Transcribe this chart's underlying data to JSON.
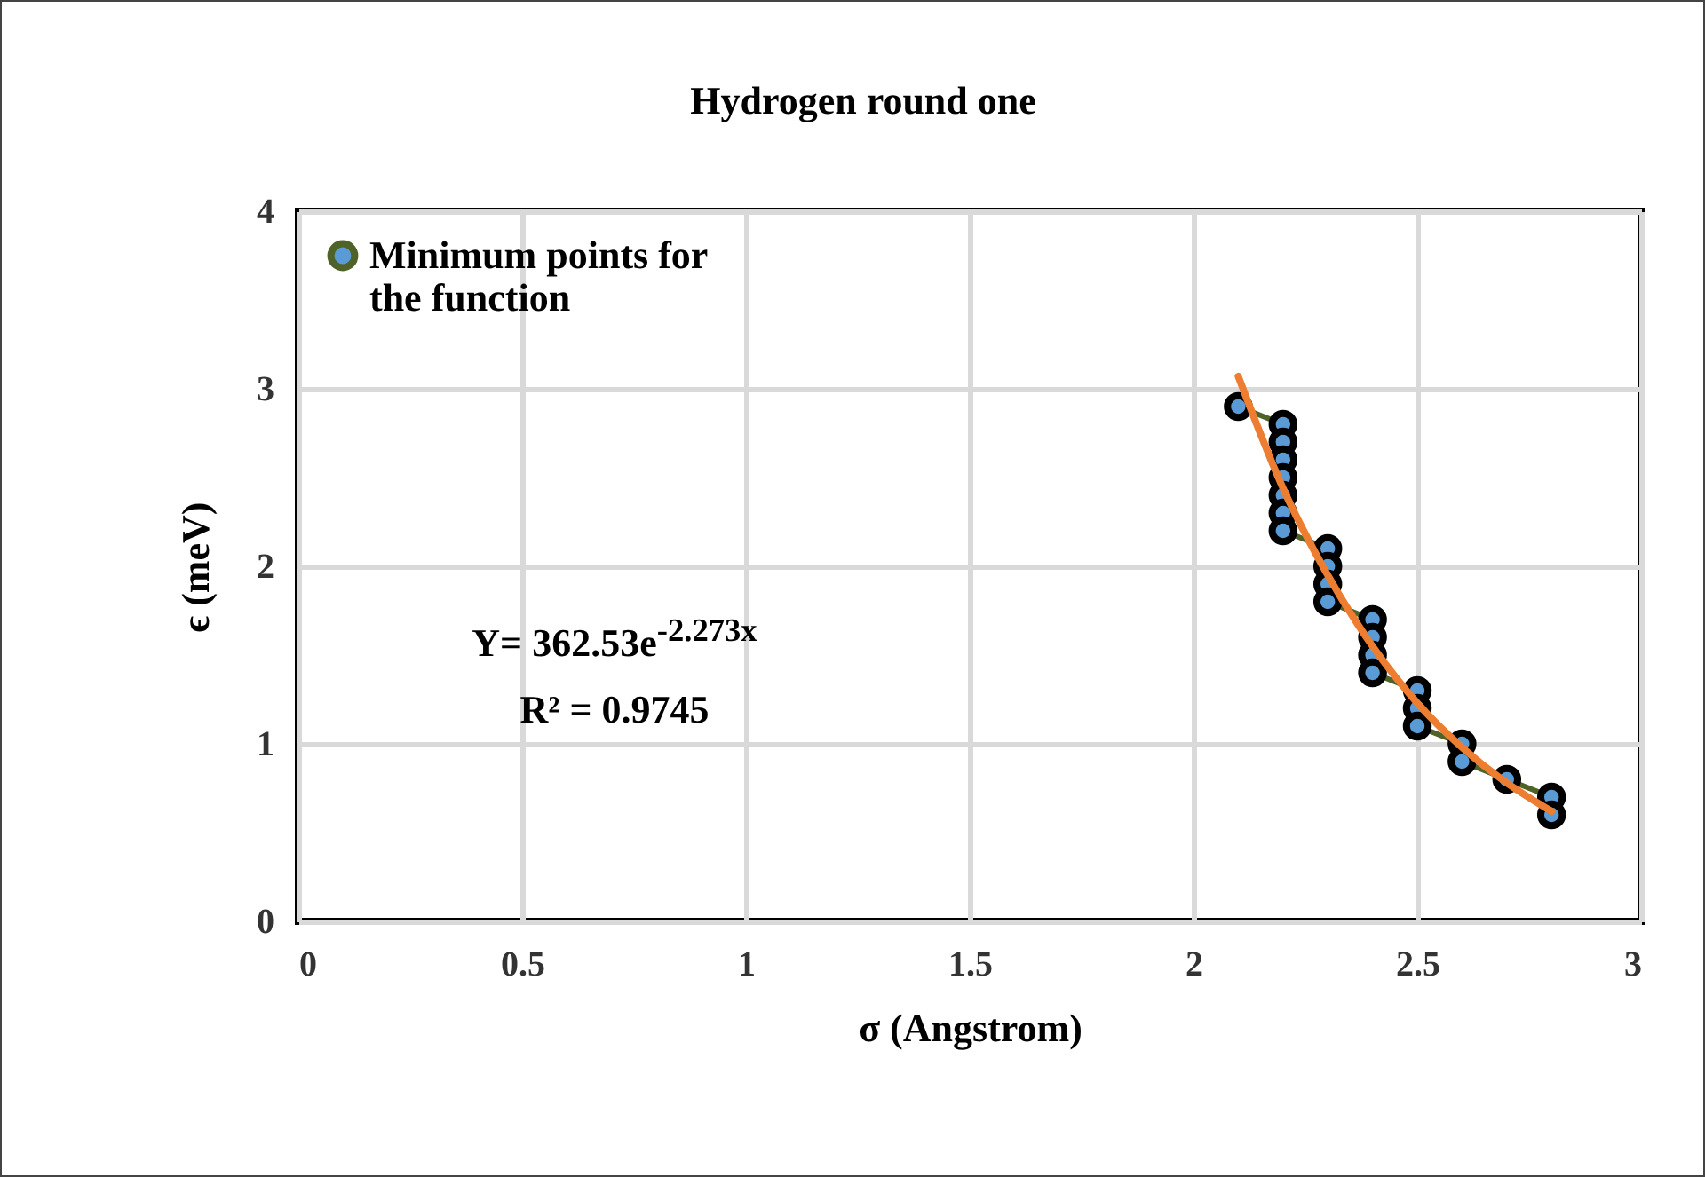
{
  "chart_data": {
    "type": "line",
    "title": "Hydrogen round one",
    "xlabel": "σ (Angstrom)",
    "ylabel": "ϵ (meV)",
    "xlim": [
      0,
      3
    ],
    "xticks": [
      0,
      0.5,
      1,
      1.5,
      2,
      2.5,
      3
    ],
    "ylim": [
      0,
      4
    ],
    "yticks": [
      0,
      1,
      2,
      3,
      4
    ],
    "grid": true,
    "legend": "top left",
    "marker": "circle",
    "annotations": [
      "Y= 362.53e$^{-2.273x}$",
      "R² = 0.9745"
    ],
    "series": [
      {
        "name": "Minimum points for the function",
        "color": "#4f6228",
        "x": [
          2.1,
          2.2,
          2.2,
          2.2,
          2.2,
          2.2,
          2.2,
          2.2,
          2.3,
          2.3,
          2.3,
          2.3,
          2.4,
          2.4,
          2.4,
          2.4,
          2.5,
          2.5,
          2.5,
          2.6,
          2.6,
          2.7,
          2.8,
          2.8
        ],
        "values": [
          2.9,
          2.8,
          2.7,
          2.6,
          2.5,
          2.4,
          2.3,
          2.2,
          2.1,
          2.0,
          1.9,
          1.8,
          1.7,
          1.6,
          1.5,
          1.4,
          1.3,
          1.2,
          1.1,
          1.0,
          0.9,
          0.8,
          0.7,
          0.6
        ]
      },
      {
        "type": "line",
        "color": "#ed7d31",
        "marker": "none",
        "x": [
          2.1,
          2.2,
          2.3,
          2.4,
          2.5,
          2.6,
          2.7,
          2.8
        ],
        "values": [
          3.07,
          2.44,
          1.95,
          1.55,
          1.23,
          0.98,
          0.78,
          0.62
        ]
      }
    ]
  }
}
